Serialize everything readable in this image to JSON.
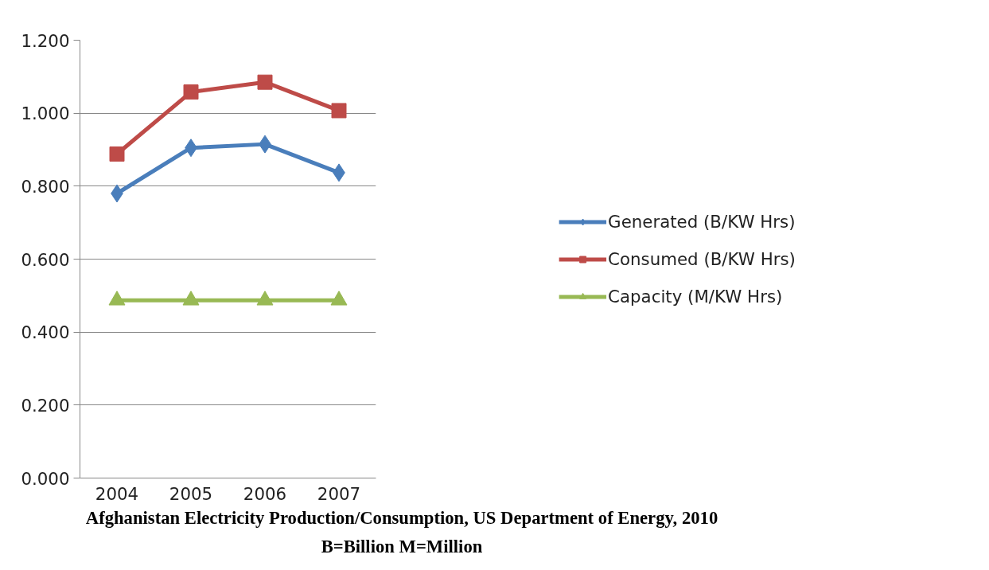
{
  "chart_data": {
    "type": "line",
    "categories": [
      "2004",
      "2005",
      "2006",
      "2007"
    ],
    "series": [
      {
        "name": "Generated (B/KW Hrs)",
        "color": "#4a7ebb",
        "marker": "diamond",
        "values": [
          0.78,
          0.905,
          0.915,
          0.837
        ]
      },
      {
        "name": "Consumed (B/KW Hrs)",
        "color": "#be4b48",
        "marker": "square",
        "values": [
          0.888,
          1.058,
          1.085,
          1.007
        ]
      },
      {
        "name": "Capacity (M/KW Hrs)",
        "color": "#98b954",
        "marker": "triangle",
        "values": [
          0.487,
          0.487,
          0.487,
          0.487
        ]
      }
    ],
    "ylim": [
      0,
      1.2
    ],
    "yticks": [
      {
        "value": 0,
        "label": "0.000"
      },
      {
        "value": 0.2,
        "label": "0.200"
      },
      {
        "value": 0.4,
        "label": "0.400"
      },
      {
        "value": 0.6,
        "label": "0.600"
      },
      {
        "value": 0.8,
        "label": "0.800"
      },
      {
        "value": 1.0,
        "label": "1.000"
      },
      {
        "value": 1.2,
        "label": "1.200"
      }
    ],
    "grid": "y",
    "legend": "right",
    "line_style": "solid",
    "annotations": [
      "Afghanistan Electricity Production/Consumption, US Department of Energy, 2010",
      "B=Billion M=Million"
    ]
  }
}
